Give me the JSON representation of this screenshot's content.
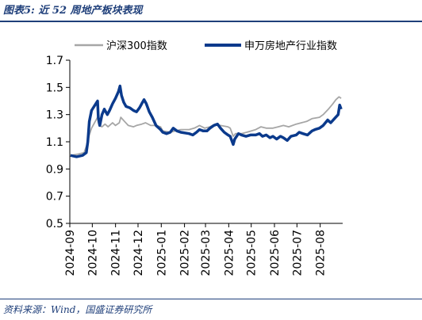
{
  "figure_title": "图表5:  近 52 周地产板块表现",
  "source_note": "资料来源：Wind，国盛证券研究所",
  "chart_data": {
    "type": "line",
    "title": "",
    "xlabel": "",
    "ylabel": "",
    "ylim": [
      0.5,
      1.7
    ],
    "yticks": [
      "0.5",
      "0.7",
      "0.9",
      "1.1",
      "1.3",
      "1.5",
      "1.7"
    ],
    "x_tick_labels": [
      "2024-09",
      "2024-10",
      "2024-11",
      "2024-12",
      "2025-01",
      "2025-02",
      "2025-03",
      "2025-04",
      "2025-05",
      "2025-06",
      "2025-07",
      "2025-08"
    ],
    "legend_position": "top",
    "grid": false,
    "series": [
      {
        "name": "沪深300指数",
        "color": "#a6a6a6",
        "points": [
          [
            "2024-09-02",
            1.0
          ],
          [
            "2024-09-13",
            1.01
          ],
          [
            "2024-09-20",
            1.02
          ],
          [
            "2024-09-24",
            1.08
          ],
          [
            "2024-09-27",
            1.15
          ],
          [
            "2024-09-30",
            1.2
          ],
          [
            "2024-10-08",
            1.28
          ],
          [
            "2024-10-09",
            1.24
          ],
          [
            "2024-10-10",
            1.22
          ],
          [
            "2024-10-14",
            1.21
          ],
          [
            "2024-10-18",
            1.23
          ],
          [
            "2024-10-22",
            1.21
          ],
          [
            "2024-10-28",
            1.24
          ],
          [
            "2024-11-01",
            1.22
          ],
          [
            "2024-11-06",
            1.24
          ],
          [
            "2024-11-08",
            1.28
          ],
          [
            "2024-11-13",
            1.25
          ],
          [
            "2024-11-18",
            1.22
          ],
          [
            "2024-11-25",
            1.21
          ],
          [
            "2024-11-29",
            1.22
          ],
          [
            "2024-12-06",
            1.23
          ],
          [
            "2024-12-11",
            1.24
          ],
          [
            "2024-12-18",
            1.22
          ],
          [
            "2024-12-25",
            1.22
          ],
          [
            "2024-12-31",
            1.21
          ],
          [
            "2025-01-03",
            1.18
          ],
          [
            "2025-01-13",
            1.17
          ],
          [
            "2025-01-20",
            1.18
          ],
          [
            "2025-01-27",
            1.19
          ],
          [
            "2025-02-07",
            1.19
          ],
          [
            "2025-02-14",
            1.2
          ],
          [
            "2025-02-21",
            1.22
          ],
          [
            "2025-02-28",
            1.2
          ],
          [
            "2025-03-07",
            1.21
          ],
          [
            "2025-03-14",
            1.23
          ],
          [
            "2025-03-21",
            1.22
          ],
          [
            "2025-03-31",
            1.21
          ],
          [
            "2025-04-03",
            1.2
          ],
          [
            "2025-04-07",
            1.14
          ],
          [
            "2025-04-10",
            1.16
          ],
          [
            "2025-04-18",
            1.16
          ],
          [
            "2025-04-25",
            1.17
          ],
          [
            "2025-05-07",
            1.19
          ],
          [
            "2025-05-14",
            1.21
          ],
          [
            "2025-05-21",
            1.2
          ],
          [
            "2025-05-30",
            1.2
          ],
          [
            "2025-06-06",
            1.21
          ],
          [
            "2025-06-13",
            1.22
          ],
          [
            "2025-06-20",
            1.21
          ],
          [
            "2025-06-30",
            1.23
          ],
          [
            "2025-07-07",
            1.24
          ],
          [
            "2025-07-14",
            1.25
          ],
          [
            "2025-07-21",
            1.27
          ],
          [
            "2025-07-31",
            1.28
          ],
          [
            "2025-08-05",
            1.3
          ],
          [
            "2025-08-12",
            1.34
          ],
          [
            "2025-08-18",
            1.38
          ],
          [
            "2025-08-22",
            1.41
          ],
          [
            "2025-08-26",
            1.43
          ],
          [
            "2025-08-29",
            1.42
          ]
        ]
      },
      {
        "name": "申万房地产行业指数",
        "color": "#0b3a8c",
        "points": [
          [
            "2024-09-02",
            1.0
          ],
          [
            "2024-09-10",
            0.99
          ],
          [
            "2024-09-18",
            1.0
          ],
          [
            "2024-09-23",
            1.02
          ],
          [
            "2024-09-25",
            1.1
          ],
          [
            "2024-09-27",
            1.25
          ],
          [
            "2024-09-30",
            1.33
          ],
          [
            "2024-10-08",
            1.4
          ],
          [
            "2024-10-09",
            1.28
          ],
          [
            "2024-10-11",
            1.22
          ],
          [
            "2024-10-14",
            1.3
          ],
          [
            "2024-10-17",
            1.34
          ],
          [
            "2024-10-21",
            1.3
          ],
          [
            "2024-10-24",
            1.33
          ],
          [
            "2024-10-28",
            1.38
          ],
          [
            "2024-11-01",
            1.42
          ],
          [
            "2024-11-05",
            1.47
          ],
          [
            "2024-11-07",
            1.51
          ],
          [
            "2024-11-09",
            1.44
          ],
          [
            "2024-11-12",
            1.39
          ],
          [
            "2024-11-15",
            1.36
          ],
          [
            "2024-11-20",
            1.35
          ],
          [
            "2024-11-25",
            1.33
          ],
          [
            "2024-11-29",
            1.32
          ],
          [
            "2024-12-03",
            1.35
          ],
          [
            "2024-12-06",
            1.38
          ],
          [
            "2024-12-09",
            1.41
          ],
          [
            "2024-12-12",
            1.38
          ],
          [
            "2024-12-16",
            1.32
          ],
          [
            "2024-12-20",
            1.28
          ],
          [
            "2024-12-25",
            1.22
          ],
          [
            "2024-12-31",
            1.19
          ],
          [
            "2025-01-03",
            1.17
          ],
          [
            "2025-01-08",
            1.16
          ],
          [
            "2025-01-13",
            1.17
          ],
          [
            "2025-01-17",
            1.2
          ],
          [
            "2025-01-22",
            1.18
          ],
          [
            "2025-01-27",
            1.17
          ],
          [
            "2025-02-07",
            1.16
          ],
          [
            "2025-02-12",
            1.15
          ],
          [
            "2025-02-17",
            1.17
          ],
          [
            "2025-02-21",
            1.19
          ],
          [
            "2025-02-26",
            1.18
          ],
          [
            "2025-03-03",
            1.18
          ],
          [
            "2025-03-07",
            1.2
          ],
          [
            "2025-03-12",
            1.22
          ],
          [
            "2025-03-17",
            1.23
          ],
          [
            "2025-03-21",
            1.2
          ],
          [
            "2025-03-26",
            1.17
          ],
          [
            "2025-03-31",
            1.15
          ],
          [
            "2025-04-03",
            1.14
          ],
          [
            "2025-04-07",
            1.08
          ],
          [
            "2025-04-09",
            1.12
          ],
          [
            "2025-04-14",
            1.16
          ],
          [
            "2025-04-18",
            1.15
          ],
          [
            "2025-04-24",
            1.14
          ],
          [
            "2025-04-30",
            1.15
          ],
          [
            "2025-05-07",
            1.15
          ],
          [
            "2025-05-12",
            1.16
          ],
          [
            "2025-05-16",
            1.14
          ],
          [
            "2025-05-21",
            1.15
          ],
          [
            "2025-05-26",
            1.13
          ],
          [
            "2025-05-30",
            1.14
          ],
          [
            "2025-06-04",
            1.12
          ],
          [
            "2025-06-09",
            1.14
          ],
          [
            "2025-06-13",
            1.13
          ],
          [
            "2025-06-18",
            1.11
          ],
          [
            "2025-06-23",
            1.14
          ],
          [
            "2025-06-30",
            1.15
          ],
          [
            "2025-07-04",
            1.17
          ],
          [
            "2025-07-09",
            1.16
          ],
          [
            "2025-07-15",
            1.15
          ],
          [
            "2025-07-21",
            1.18
          ],
          [
            "2025-07-25",
            1.19
          ],
          [
            "2025-07-31",
            1.2
          ],
          [
            "2025-08-05",
            1.22
          ],
          [
            "2025-08-11",
            1.26
          ],
          [
            "2025-08-15",
            1.24
          ],
          [
            "2025-08-20",
            1.27
          ],
          [
            "2025-08-25",
            1.3
          ],
          [
            "2025-08-27",
            1.37
          ],
          [
            "2025-08-29",
            1.34
          ]
        ]
      }
    ]
  }
}
